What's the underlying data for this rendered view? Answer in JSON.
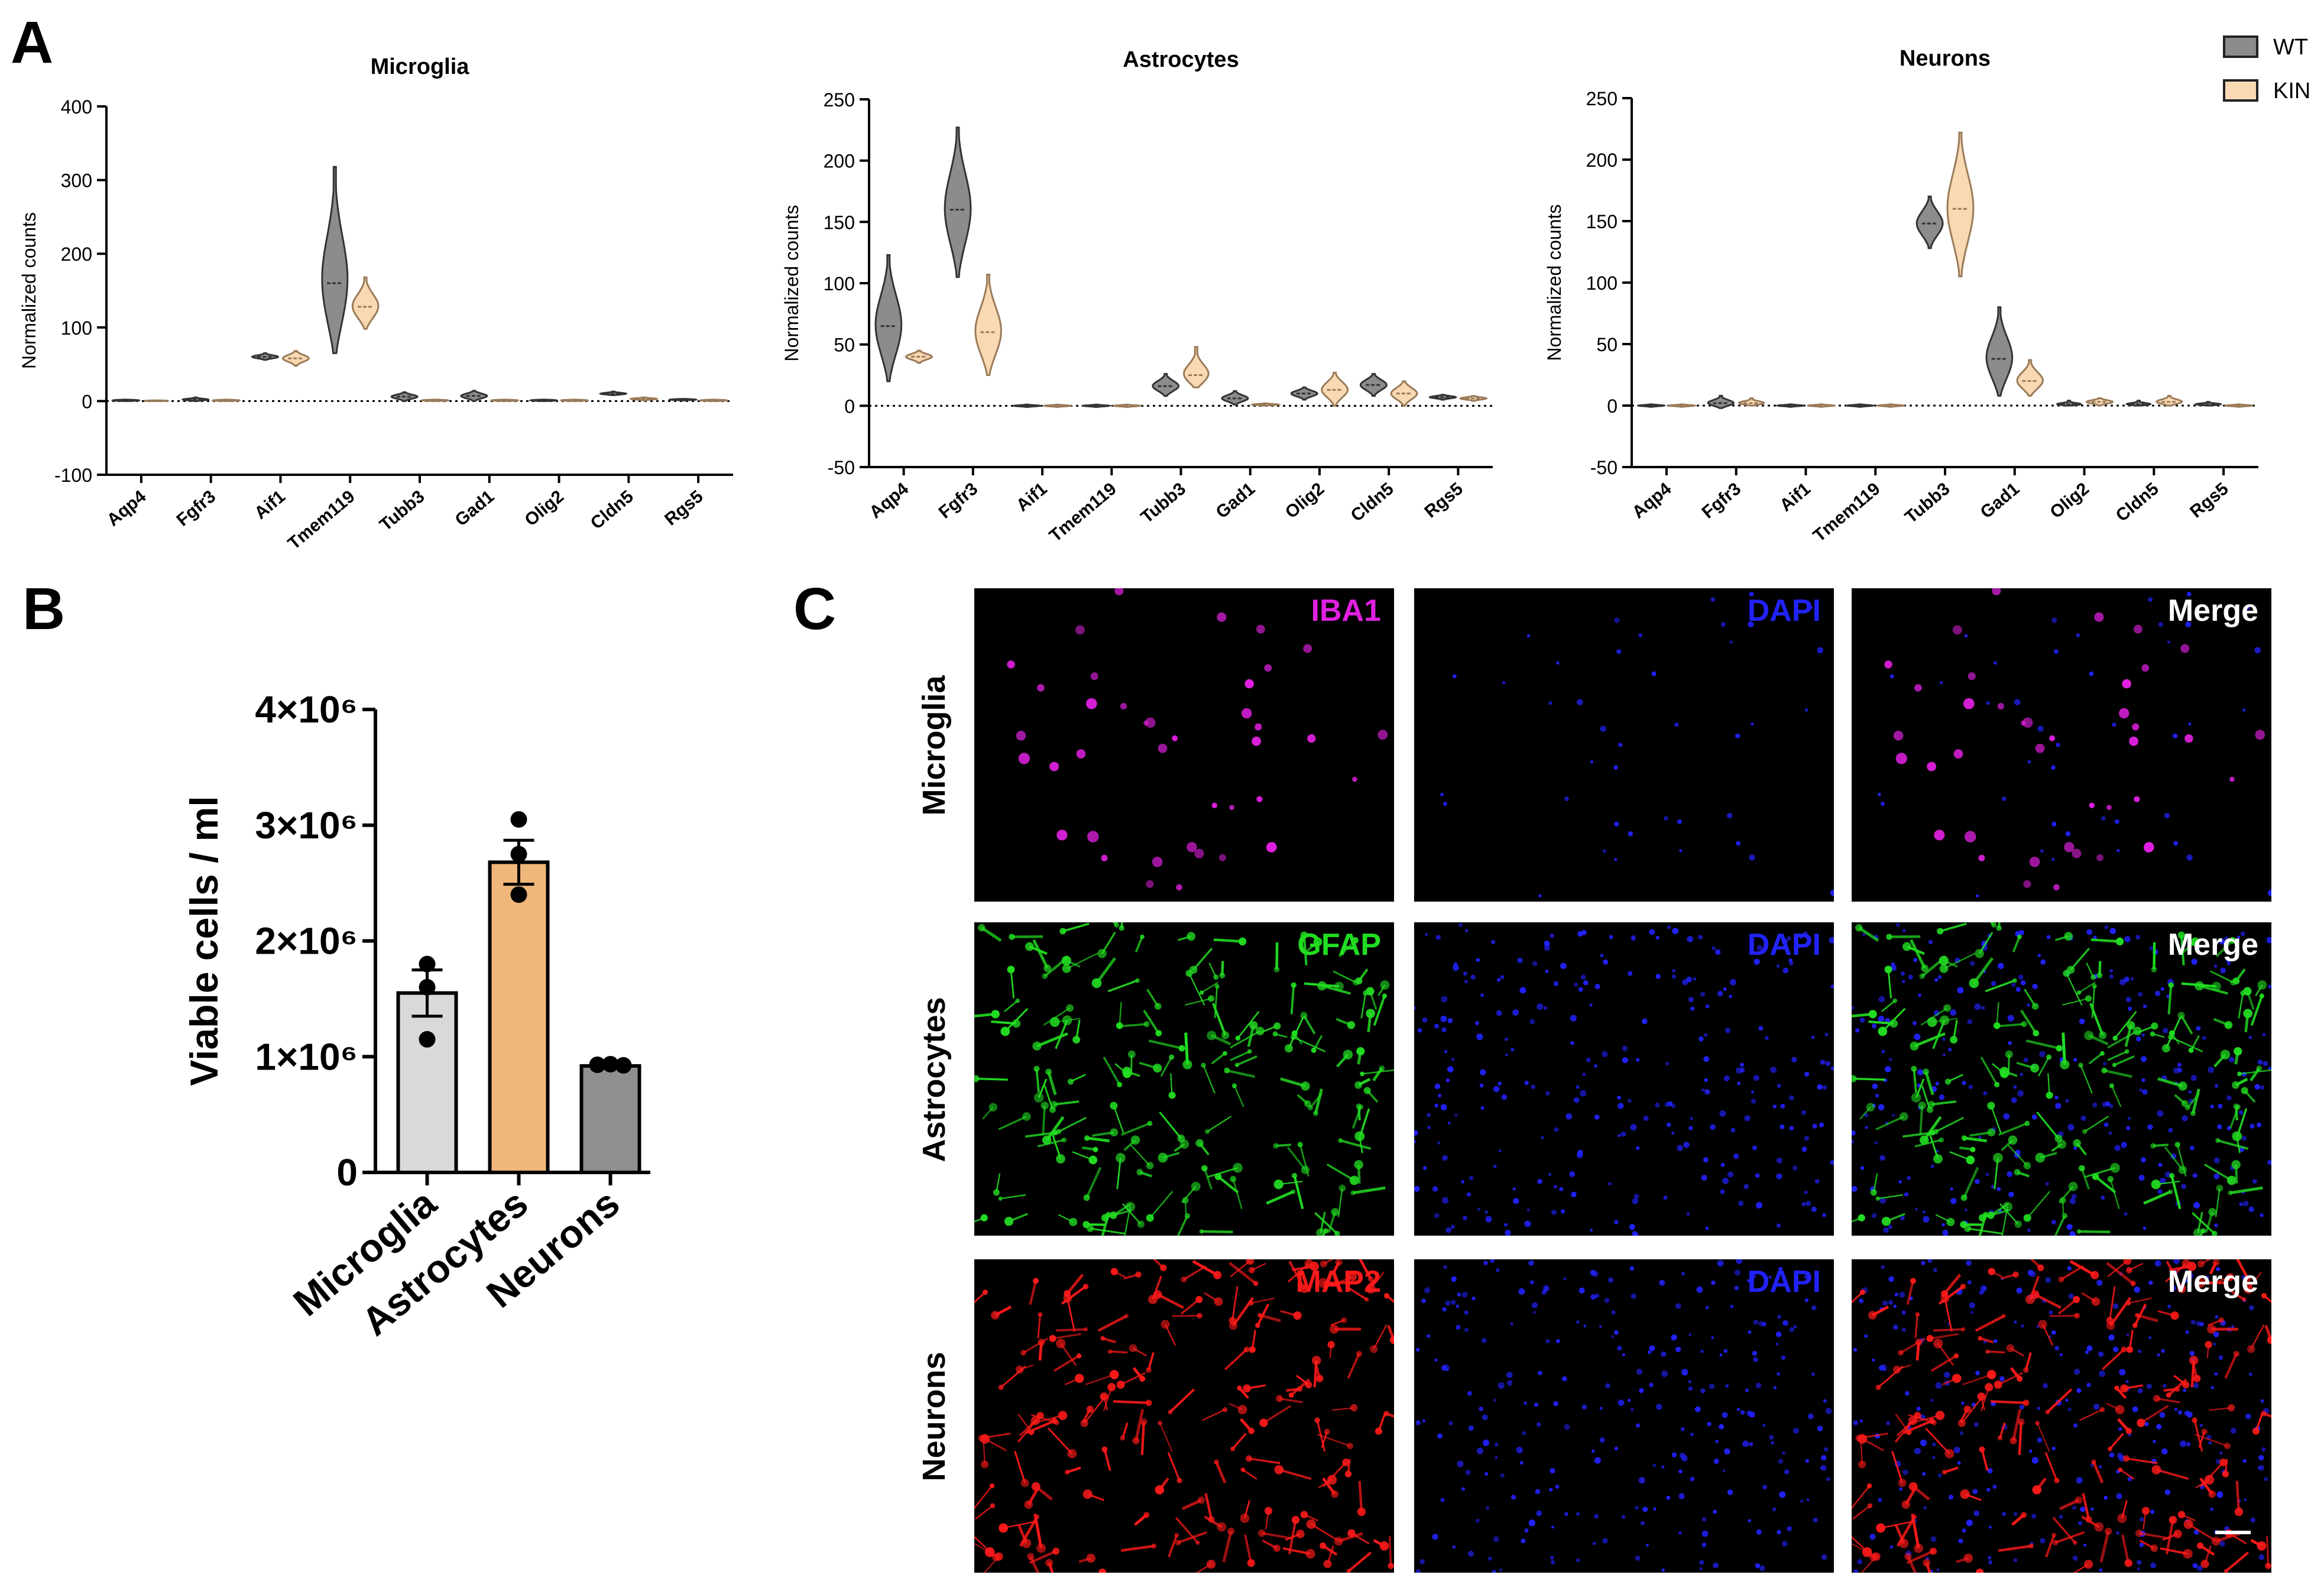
{
  "panels": {
    "a": "A",
    "b": "B",
    "c": "C"
  },
  "legend": [
    {
      "name": "WT",
      "color": "#8c8c8c"
    },
    {
      "name": "KIN",
      "color": "#f8d9b4"
    }
  ],
  "violin_y_label": "Normalized counts",
  "genes": [
    "Aqp4",
    "Fgfr3",
    "Aif1",
    "Tmem119",
    "Tubb3",
    "Gad1",
    "Olig2",
    "Cldn5",
    "Rgs5"
  ],
  "chart_data": [
    {
      "type": "violin",
      "title": "Microglia",
      "ylabel": "Normalized counts",
      "ylim": [
        -100,
        400
      ],
      "yticks": [
        -100,
        0,
        100,
        200,
        300,
        400
      ],
      "categories": [
        "Aqp4",
        "Fgfr3",
        "Aif1",
        "Tmem119",
        "Tubb3",
        "Gad1",
        "Olig2",
        "Cldn5",
        "Rgs5"
      ],
      "series": [
        {
          "name": "WT",
          "values": [
            1,
            2,
            60,
            160,
            6,
            7,
            1,
            10,
            2
          ],
          "min": [
            0,
            0,
            56,
            65,
            0,
            0,
            0,
            8,
            1
          ],
          "max": [
            2,
            5,
            65,
            318,
            12,
            14,
            2,
            13,
            3
          ]
        },
        {
          "name": "KIN",
          "values": [
            0,
            1,
            58,
            128,
            1,
            1,
            1,
            3,
            1
          ],
          "min": [
            0,
            0,
            48,
            98,
            0,
            0,
            0,
            1,
            0
          ],
          "max": [
            1,
            2,
            68,
            168,
            2,
            2,
            2,
            5,
            2
          ]
        }
      ]
    },
    {
      "type": "violin",
      "title": "Astrocytes",
      "ylabel": "Normalized counts",
      "ylim": [
        -50,
        250
      ],
      "yticks": [
        -50,
        0,
        50,
        100,
        150,
        200,
        250
      ],
      "categories": [
        "Aqp4",
        "Fgfr3",
        "Aif1",
        "Tmem119",
        "Tubb3",
        "Gad1",
        "Olig2",
        "Cldn5",
        "Rgs5"
      ],
      "series": [
        {
          "name": "WT",
          "values": [
            65,
            160,
            0,
            0,
            16,
            6,
            10,
            17,
            7
          ],
          "min": [
            20,
            105,
            -1,
            -1,
            8,
            1,
            5,
            8,
            5
          ],
          "max": [
            123,
            227,
            1,
            1,
            26,
            12,
            15,
            26,
            9
          ]
        },
        {
          "name": "KIN",
          "values": [
            40,
            60,
            0,
            0,
            25,
            1,
            13,
            10,
            6
          ],
          "min": [
            35,
            25,
            -1,
            -1,
            15,
            0,
            0,
            0,
            4
          ],
          "max": [
            45,
            107,
            1,
            1,
            48,
            2,
            27,
            20,
            8
          ]
        }
      ]
    },
    {
      "type": "violin",
      "title": "Neurons",
      "ylabel": "Normalized counts",
      "ylim": [
        -50,
        250
      ],
      "yticks": [
        -50,
        0,
        50,
        100,
        150,
        200,
        250
      ],
      "categories": [
        "Aqp4",
        "Fgfr3",
        "Aif1",
        "Tmem119",
        "Tubb3",
        "Gad1",
        "Olig2",
        "Cldn5",
        "Rgs5"
      ],
      "series": [
        {
          "name": "WT",
          "values": [
            0,
            2,
            0,
            0,
            148,
            38,
            1,
            1,
            1
          ],
          "min": [
            -1,
            -2,
            -1,
            -1,
            128,
            8,
            0,
            0,
            0
          ],
          "max": [
            1,
            8,
            1,
            1,
            170,
            80,
            4,
            4,
            3
          ]
        },
        {
          "name": "KIN",
          "values": [
            0,
            2,
            0,
            0,
            160,
            20,
            3,
            3,
            0
          ],
          "min": [
            -1,
            0,
            -1,
            -1,
            105,
            8,
            0,
            0,
            -1
          ],
          "max": [
            1,
            6,
            1,
            1,
            222,
            37,
            6,
            8,
            1
          ]
        }
      ]
    },
    {
      "type": "bar",
      "ylabel": "Viable cells / ml",
      "ylim": [
        0,
        4000000
      ],
      "yticks": [
        0,
        1000000,
        2000000,
        3000000,
        4000000
      ],
      "ytick_labels": [
        "0",
        "1×10⁶",
        "2×10⁶",
        "3×10⁶",
        "4×10⁶"
      ],
      "categories": [
        "Microglia",
        "Astrocytes",
        "Neurons"
      ],
      "values": [
        1550000,
        2680000,
        920000
      ],
      "sem": [
        200000,
        190000,
        15000
      ],
      "points": [
        [
          1800000,
          1600000,
          1150000
        ],
        [
          3050000,
          2750000,
          2400000
        ],
        [
          930000,
          935000,
          925000
        ]
      ],
      "colors": [
        "#d9d9d9",
        "#f0b77a",
        "#8f8f8f"
      ]
    }
  ],
  "microscopy": {
    "rows": [
      {
        "label": "Microglia",
        "marker": "IBA1",
        "marker_color": "#e020e0",
        "dapi": "DAPI",
        "merge": "Merge"
      },
      {
        "label": "Astrocytes",
        "marker": "GFAP",
        "marker_color": "#22dd22",
        "dapi": "DAPI",
        "merge": "Merge"
      },
      {
        "label": "Neurons",
        "marker": "MAP2",
        "marker_color": "#ff1a1a",
        "dapi": "DAPI",
        "merge": "Merge"
      }
    ],
    "dapi_color": "#2222ff",
    "merge_color": "#ffffff"
  }
}
